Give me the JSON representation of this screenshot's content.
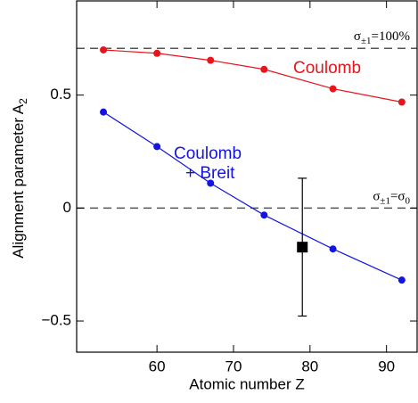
{
  "chart_data": {
    "type": "line",
    "xlabel": "Atomic number Z",
    "ylabel": [
      "Alignment parameter A",
      "2"
    ],
    "xlim": [
      49.5,
      94
    ],
    "ylim": [
      -0.638,
      0.917
    ],
    "xticks": [
      60,
      70,
      80,
      90
    ],
    "yticks": [
      {
        "value": -0.5,
        "label": "−0.5"
      },
      0,
      0.5
    ],
    "series": [
      {
        "name": "Coulomb",
        "color": "#e8141c",
        "x": [
          53,
          60,
          67,
          74,
          83,
          92
        ],
        "values": [
          0.7,
          0.685,
          0.654,
          0.614,
          0.528,
          0.469
        ]
      },
      {
        "name": [
          "Coulomb",
          "+ Breit"
        ],
        "color": "#1414e0",
        "x": [
          53,
          60,
          67,
          74,
          83,
          92
        ],
        "values": [
          0.425,
          0.272,
          0.11,
          -0.031,
          -0.181,
          -0.319
        ]
      },
      {
        "type": "errorbar",
        "color": "#000000",
        "x": [
          79
        ],
        "values": [
          -0.173
        ],
        "errors": [
          0.305
        ]
      }
    ],
    "reference_lines": [
      {
        "value": 0.707,
        "label": [
          "σ",
          "±1",
          "=100%"
        ]
      },
      {
        "value": 0,
        "label": [
          "σ",
          "±1",
          "=σ",
          "0"
        ]
      }
    ]
  }
}
